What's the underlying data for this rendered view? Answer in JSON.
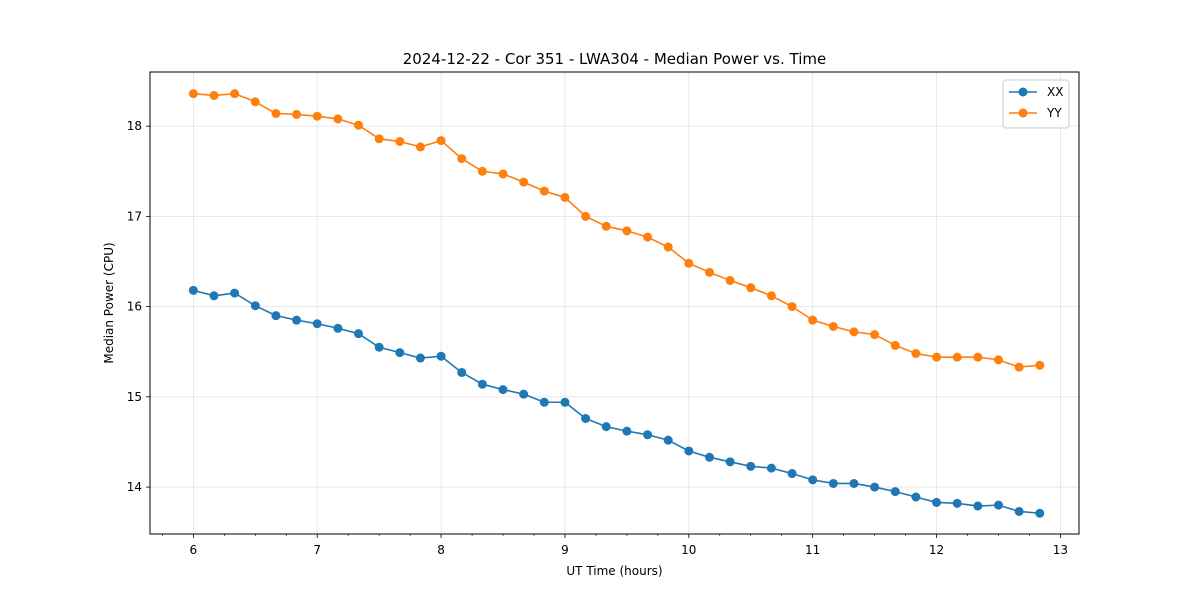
{
  "chart_data": {
    "type": "line",
    "title": "2024-12-22 - Cor 351 - LWA304 - Median Power vs. Time",
    "xlabel": "UT Time (hours)",
    "ylabel": "Median Power (CPU)",
    "xlim": [
      5.65,
      13.15
    ],
    "ylim": [
      13.48,
      18.6
    ],
    "xticks": [
      6,
      7,
      8,
      9,
      10,
      11,
      12,
      13
    ],
    "xtick_labels": [
      "6",
      "7",
      "8",
      "9",
      "10",
      "11",
      "12",
      "13"
    ],
    "yticks": [
      14,
      15,
      16,
      17,
      18
    ],
    "ytick_labels": [
      "14",
      "15",
      "16",
      "17",
      "18"
    ],
    "grid": true,
    "legend_position": "top-right",
    "x": [
      6.0,
      6.1667,
      6.3333,
      6.5,
      6.6667,
      6.8333,
      7.0,
      7.1667,
      7.3333,
      7.5,
      7.6667,
      7.8333,
      8.0,
      8.1667,
      8.3333,
      8.5,
      8.6667,
      8.8333,
      9.0,
      9.1667,
      9.3333,
      9.5,
      9.6667,
      9.8333,
      10.0,
      10.1667,
      10.3333,
      10.5,
      10.6667,
      10.8333,
      11.0,
      11.1667,
      11.3333,
      11.5,
      11.6667,
      11.8333,
      12.0,
      12.1667,
      12.3333,
      12.5,
      12.6667,
      12.8333
    ],
    "series": [
      {
        "name": "XX",
        "color": "#1f77b4",
        "values": [
          16.18,
          16.12,
          16.15,
          16.01,
          15.9,
          15.85,
          15.81,
          15.76,
          15.7,
          15.55,
          15.49,
          15.43,
          15.45,
          15.27,
          15.14,
          15.08,
          15.03,
          14.94,
          14.94,
          14.76,
          14.67,
          14.62,
          14.58,
          14.52,
          14.4,
          14.33,
          14.28,
          14.23,
          14.21,
          14.15,
          14.08,
          14.04,
          14.04,
          14.0,
          13.95,
          13.89,
          13.83,
          13.82,
          13.79,
          13.8,
          13.73,
          13.71
        ]
      },
      {
        "name": "YY",
        "color": "#ff7f0e",
        "values": [
          18.36,
          18.34,
          18.36,
          18.27,
          18.14,
          18.13,
          18.11,
          18.08,
          18.01,
          17.86,
          17.83,
          17.77,
          17.84,
          17.64,
          17.5,
          17.47,
          17.38,
          17.28,
          17.21,
          17.0,
          16.89,
          16.84,
          16.77,
          16.66,
          16.48,
          16.38,
          16.29,
          16.21,
          16.12,
          16.0,
          15.85,
          15.78,
          15.72,
          15.69,
          15.57,
          15.48,
          15.44,
          15.44,
          15.44,
          15.41,
          15.33,
          15.35
        ]
      }
    ]
  }
}
